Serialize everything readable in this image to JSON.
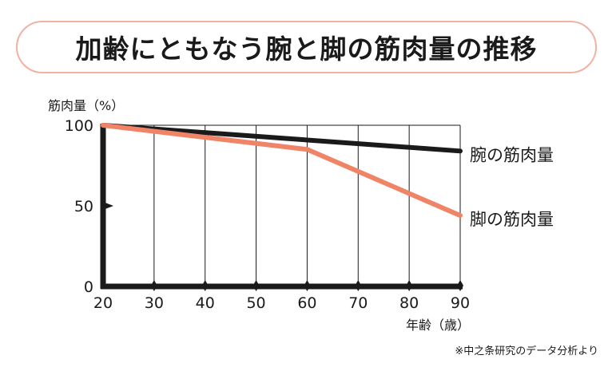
{
  "title": "加齢にともなう腕と脚の筋肉量の推移",
  "source_note": "※中之条研究のデータ分析より",
  "colors": {
    "title_border": "#f0b2a2",
    "arm_line": "#1a1a1a",
    "leg_line": "#ef8466",
    "axis": "#1a1a1a"
  },
  "chart_data": {
    "type": "line",
    "x": [
      20,
      60,
      90
    ],
    "x_ticks": [
      "20",
      "30",
      "40",
      "50",
      "60",
      "70",
      "80",
      "90"
    ],
    "y_ticks": [
      "0",
      "50",
      "100"
    ],
    "ylabel": "筋肉量（%）",
    "xlabel": "年齢（歳）",
    "xlim": [
      20,
      90
    ],
    "ylim": [
      0,
      100
    ],
    "grid": "vertical",
    "series": [
      {
        "name": "腕の筋肉量",
        "color": "#1a1a1a",
        "x": [
          20,
          90
        ],
        "values": [
          100,
          84
        ]
      },
      {
        "name": "脚の筋肉量",
        "color": "#ef8466",
        "x": [
          20,
          60,
          90
        ],
        "values": [
          100,
          85,
          44
        ]
      }
    ]
  }
}
